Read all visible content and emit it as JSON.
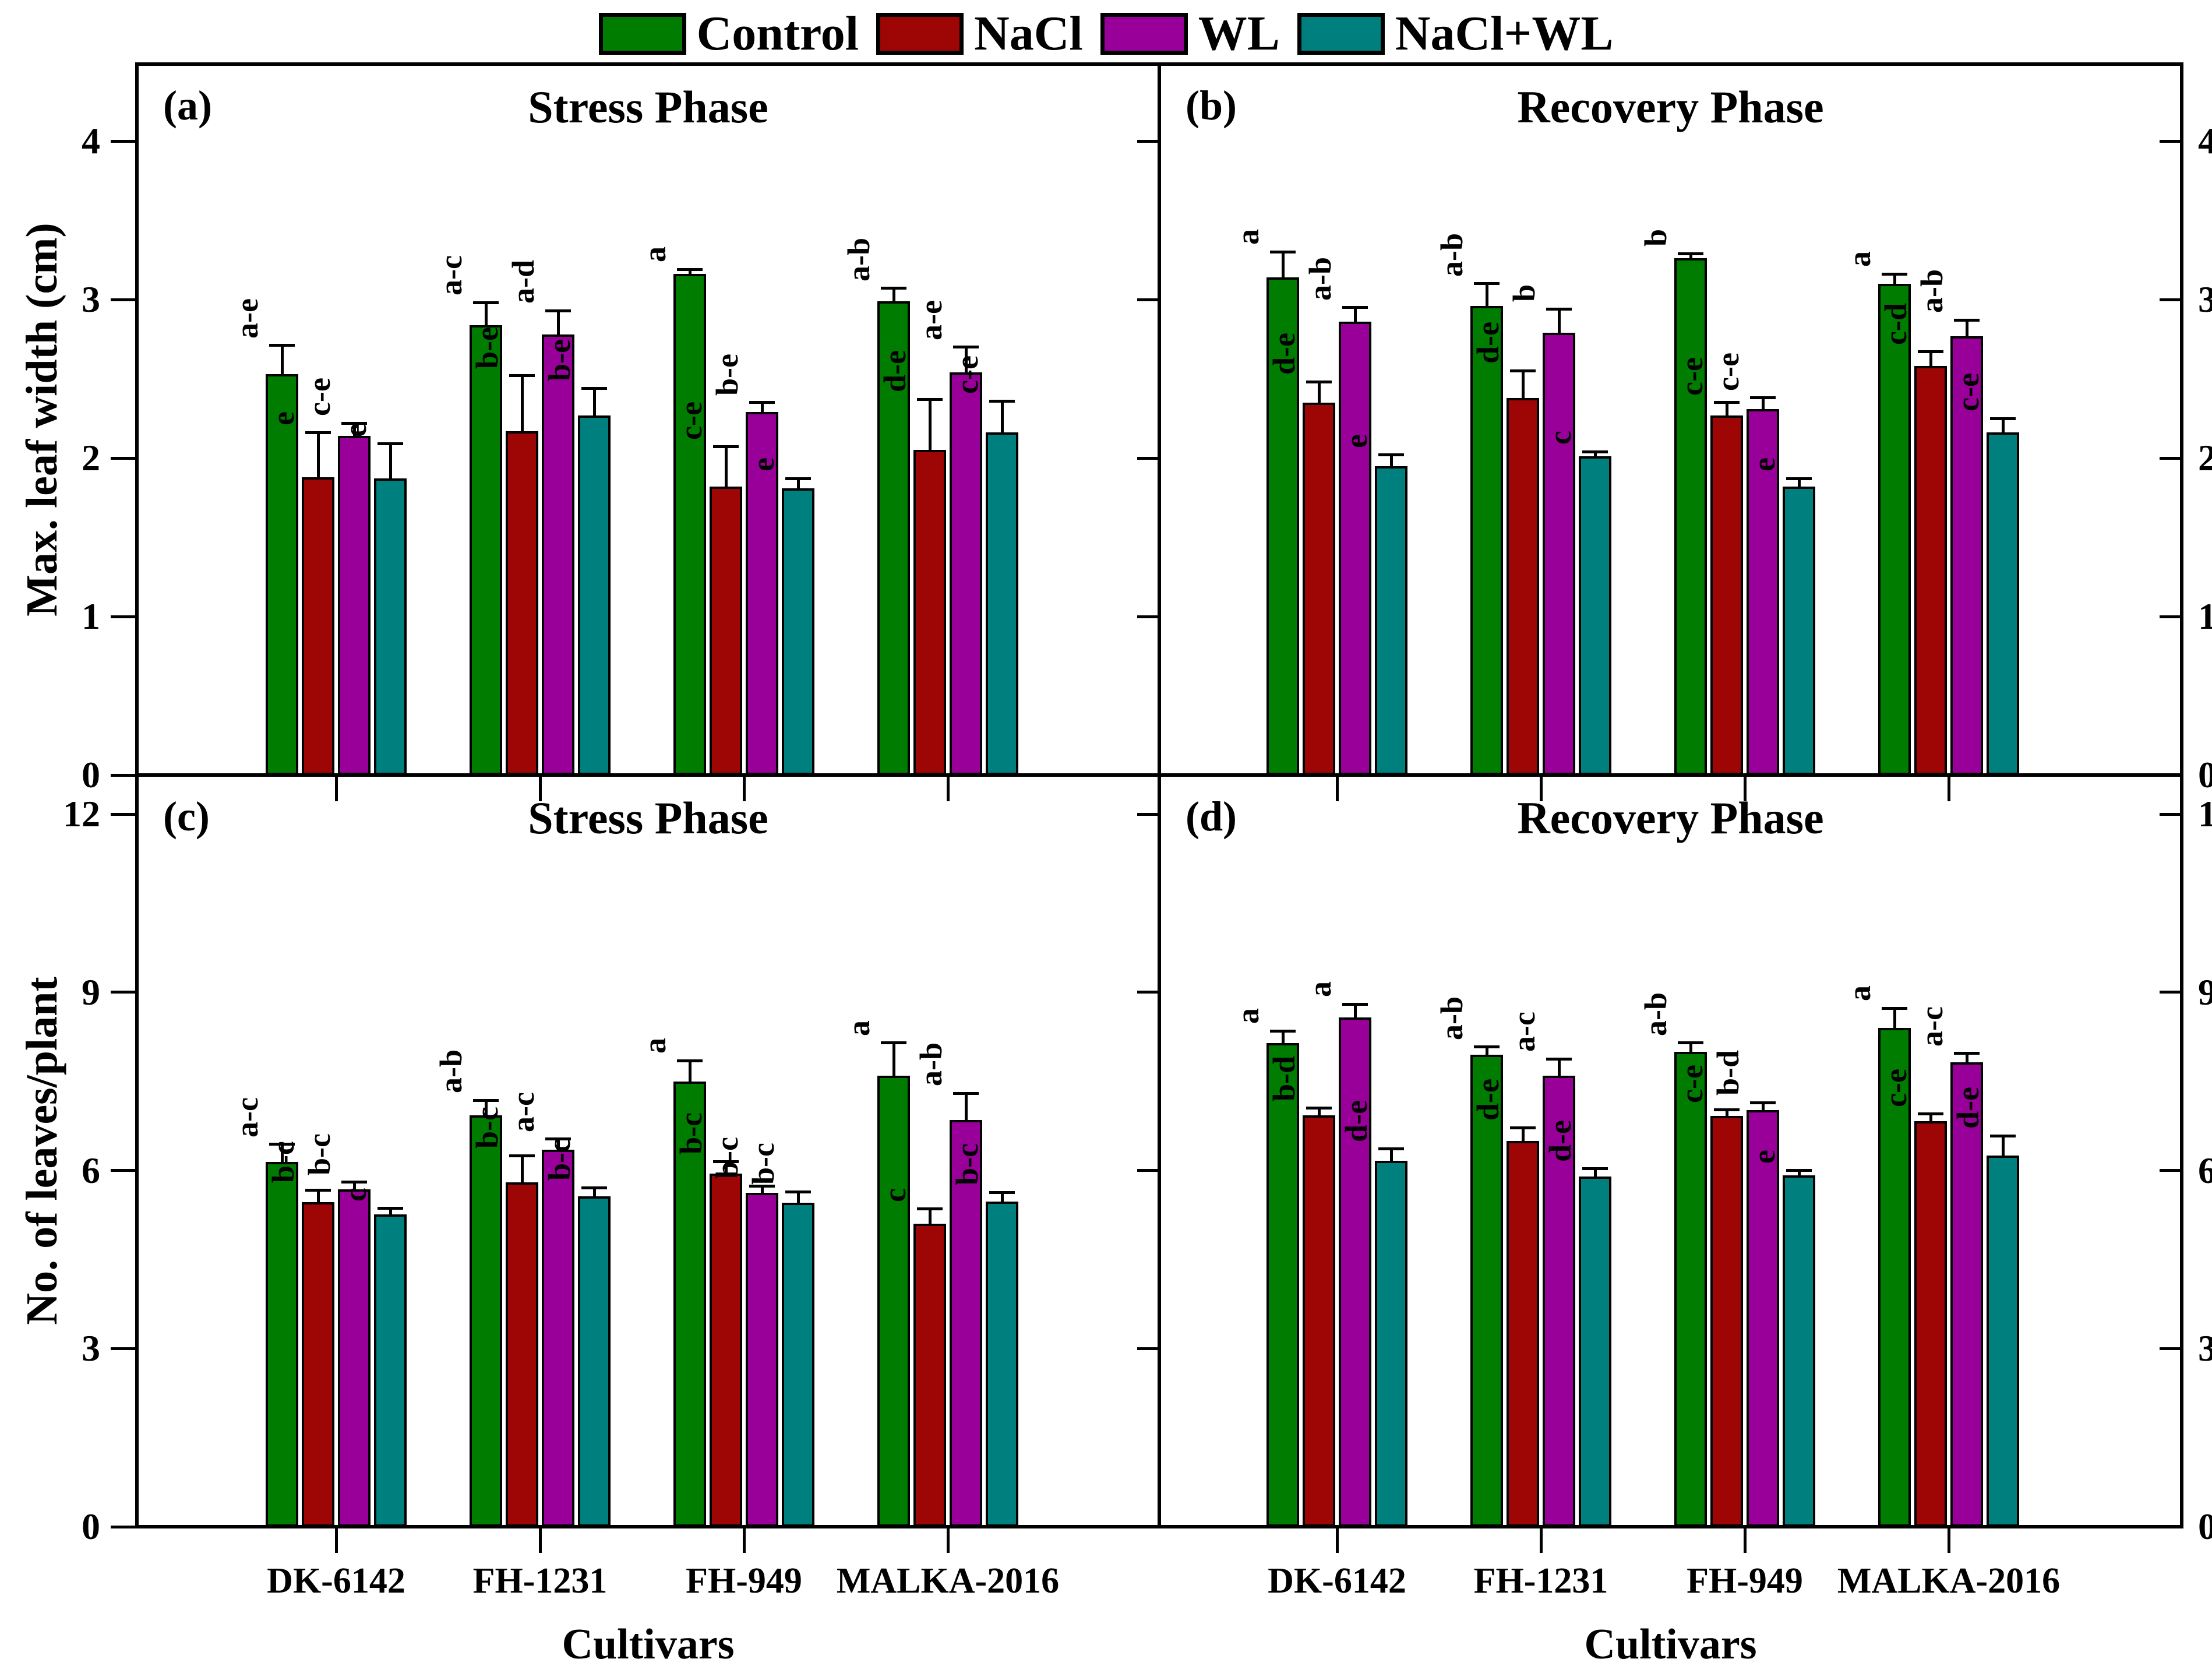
{
  "figure": {
    "legend": [
      {
        "label": "Control",
        "color": "#007C00",
        "icon": "legend-swatch-green"
      },
      {
        "label": "NaCl",
        "color": "#9E0505",
        "icon": "legend-swatch-darkred"
      },
      {
        "label": "WL",
        "color": "#990099",
        "icon": "legend-swatch-purple"
      },
      {
        "label": "NaCl+WL",
        "color": "#007F7F",
        "icon": "legend-swatch-teal"
      }
    ],
    "categories": [
      "DK-6142",
      "FH-1231",
      "FH-949",
      "MALKA-2016"
    ],
    "x_axis_title": "Cultivars",
    "left_axis_titles": {
      "top": "Max. leaf width (cm)",
      "bottom": "No. of leaves/plant"
    }
  },
  "chart_data": [
    {
      "type": "bar",
      "panel_letter": "(a)",
      "title": "Stress Phase",
      "position": "top-left",
      "ylabel": "Max. leaf width (cm)",
      "ylim": [
        0,
        4
      ],
      "yticks": [
        0,
        1,
        2,
        3,
        4
      ],
      "grid": false,
      "categories": [
        "DK-6142",
        "FH-1231",
        "FH-949",
        "MALKA-2016"
      ],
      "series": [
        {
          "name": "Control",
          "color": "#007C00",
          "values": [
            2.53,
            2.84,
            3.16,
            2.99
          ],
          "errors": [
            0.18,
            0.14,
            0.03,
            0.08
          ],
          "letters": [
            "a-e",
            "a-c",
            "a",
            "a-b"
          ]
        },
        {
          "name": "NaCl",
          "color": "#9E0505",
          "values": [
            1.88,
            2.17,
            1.82,
            2.05
          ],
          "errors": [
            0.28,
            0.35,
            0.25,
            0.32
          ],
          "letters": [
            "e",
            "b-e",
            "c-e",
            "d-e"
          ]
        },
        {
          "name": "WL",
          "color": "#990099",
          "values": [
            2.14,
            2.78,
            2.29,
            2.54
          ],
          "errors": [
            0.08,
            0.15,
            0.06,
            0.16
          ],
          "letters": [
            "c-e",
            "a-d",
            "b-e",
            "a-e"
          ]
        },
        {
          "name": "NaCl+WL",
          "color": "#007F7F",
          "values": [
            1.87,
            2.27,
            1.81,
            2.16
          ],
          "errors": [
            0.22,
            0.17,
            0.06,
            0.2
          ],
          "letters": [
            "e",
            "b-e",
            "e",
            "c-e"
          ]
        }
      ]
    },
    {
      "type": "bar",
      "panel_letter": "(b)",
      "title": "Recovery Phase",
      "position": "top-right",
      "ylabel": "Max. leaf width (cm)",
      "ylim": [
        0,
        4
      ],
      "yticks": [
        0,
        1,
        2,
        3,
        4
      ],
      "grid": false,
      "categories": [
        "DK-6142",
        "FH-1231",
        "FH-949",
        "MALKA-2016"
      ],
      "series": [
        {
          "name": "Control",
          "color": "#007C00",
          "values": [
            3.14,
            2.96,
            3.26,
            3.1
          ],
          "errors": [
            0.16,
            0.14,
            0.03,
            0.06
          ],
          "letters": [
            "a",
            "a-b",
            "b",
            "a"
          ]
        },
        {
          "name": "NaCl",
          "color": "#9E0505",
          "values": [
            2.35,
            2.38,
            2.27,
            2.58
          ],
          "errors": [
            0.13,
            0.17,
            0.08,
            0.09
          ],
          "letters": [
            "d-e",
            "d-e",
            "c-e",
            "c-d"
          ]
        },
        {
          "name": "WL",
          "color": "#990099",
          "values": [
            2.86,
            2.79,
            2.31,
            2.77
          ],
          "errors": [
            0.09,
            0.15,
            0.07,
            0.1
          ],
          "letters": [
            "a-b",
            "b",
            "c-e",
            "a-b"
          ]
        },
        {
          "name": "NaCl+WL",
          "color": "#007F7F",
          "values": [
            1.95,
            2.01,
            1.82,
            2.16
          ],
          "errors": [
            0.07,
            0.03,
            0.05,
            0.09
          ],
          "letters": [
            "e",
            "c",
            "e",
            "c-e"
          ]
        }
      ]
    },
    {
      "type": "bar",
      "panel_letter": "(c)",
      "title": "Stress Phase",
      "position": "bottom-left",
      "ylabel": "No. of leaves/plant",
      "ylim": [
        0,
        12
      ],
      "yticks": [
        0,
        3,
        6,
        9,
        12
      ],
      "grid": false,
      "categories": [
        "DK-6142",
        "FH-1231",
        "FH-949",
        "MALKA-2016"
      ],
      "series": [
        {
          "name": "Control",
          "color": "#007C00",
          "values": [
            6.14,
            6.93,
            7.5,
            7.6
          ],
          "errors": [
            0.3,
            0.25,
            0.35,
            0.55
          ],
          "letters": [
            "a-c",
            "a-b",
            "a",
            "a"
          ]
        },
        {
          "name": "NaCl",
          "color": "#9E0505",
          "values": [
            5.47,
            5.8,
            5.95,
            5.1
          ],
          "errors": [
            0.2,
            0.45,
            0.2,
            0.25
          ],
          "letters": [
            "b-c",
            "b-c",
            "b-c",
            "c"
          ]
        },
        {
          "name": "WL",
          "color": "#990099",
          "values": [
            5.68,
            6.35,
            5.62,
            6.85
          ],
          "errors": [
            0.12,
            0.18,
            0.12,
            0.45
          ],
          "letters": [
            "b-c",
            "a-c",
            "b-c",
            "a-b"
          ]
        },
        {
          "name": "NaCl+WL",
          "color": "#007F7F",
          "values": [
            5.26,
            5.56,
            5.46,
            5.48
          ],
          "errors": [
            0.1,
            0.15,
            0.18,
            0.15
          ],
          "letters": [
            "c",
            "b-c",
            "b-c",
            "b-c"
          ]
        }
      ]
    },
    {
      "type": "bar",
      "panel_letter": "(d)",
      "title": "Recovery Phase",
      "position": "bottom-right",
      "ylabel": "No. of leaves/plant",
      "ylim": [
        0,
        12
      ],
      "yticks": [
        0,
        3,
        6,
        9,
        12
      ],
      "grid": false,
      "categories": [
        "DK-6142",
        "FH-1231",
        "FH-949",
        "MALKA-2016"
      ],
      "series": [
        {
          "name": "Control",
          "color": "#007C00",
          "values": [
            8.15,
            7.95,
            8.0,
            8.4
          ],
          "errors": [
            0.2,
            0.13,
            0.15,
            0.33
          ],
          "letters": [
            "a",
            "a-b",
            "a-b",
            "a"
          ]
        },
        {
          "name": "NaCl",
          "color": "#9E0505",
          "values": [
            6.93,
            6.5,
            6.92,
            6.83
          ],
          "errors": [
            0.12,
            0.22,
            0.1,
            0.12
          ],
          "letters": [
            "b-d",
            "d-e",
            "c-e",
            "c-e"
          ]
        },
        {
          "name": "WL",
          "color": "#990099",
          "values": [
            8.58,
            7.6,
            7.02,
            7.82
          ],
          "errors": [
            0.22,
            0.28,
            0.12,
            0.15
          ],
          "letters": [
            "a",
            "a-c",
            "b-d",
            "a-c"
          ]
        },
        {
          "name": "NaCl+WL",
          "color": "#007F7F",
          "values": [
            6.16,
            5.9,
            5.92,
            6.25
          ],
          "errors": [
            0.2,
            0.13,
            0.08,
            0.33
          ],
          "letters": [
            "d-e",
            "d-e",
            "e",
            "d-e"
          ]
        }
      ]
    }
  ]
}
